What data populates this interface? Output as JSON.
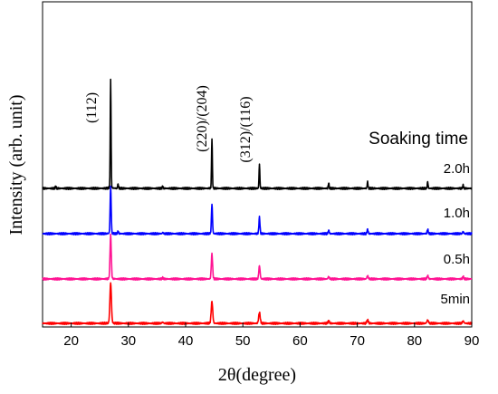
{
  "chart_data": {
    "type": "line",
    "xlabel": "2θ(degree)",
    "ylabel": "Intensity (arb. unit)",
    "xlim": [
      15,
      90
    ],
    "x_ticks": [
      "20",
      "30",
      "40",
      "50",
      "60",
      "70",
      "80",
      "90"
    ],
    "y_ticks_labeled": false,
    "grid": false,
    "legend_title": "Soaking time",
    "peak_annotations": [
      {
        "label": "(112)",
        "x": 26.9
      },
      {
        "label": "(220)/(204)",
        "x": 44.6
      },
      {
        "label": "(312)/(116)",
        "x": 52.9
      }
    ],
    "series": [
      {
        "name": "2.0h",
        "color": "#000000",
        "peaks": [
          {
            "x": 17.3,
            "h": 0.02
          },
          {
            "x": 26.9,
            "h": 1.0
          },
          {
            "x": 28.2,
            "h": 0.04
          },
          {
            "x": 36.0,
            "h": 0.02
          },
          {
            "x": 44.6,
            "h": 0.46
          },
          {
            "x": 52.9,
            "h": 0.22
          },
          {
            "x": 65.0,
            "h": 0.05
          },
          {
            "x": 71.8,
            "h": 0.06
          },
          {
            "x": 82.3,
            "h": 0.06
          },
          {
            "x": 88.5,
            "h": 0.03
          }
        ]
      },
      {
        "name": "1.0h",
        "color": "#0000ff",
        "peaks": [
          {
            "x": 26.9,
            "h": 0.43
          },
          {
            "x": 28.2,
            "h": 0.02
          },
          {
            "x": 36.0,
            "h": 0.01
          },
          {
            "x": 44.6,
            "h": 0.27
          },
          {
            "x": 52.9,
            "h": 0.15
          },
          {
            "x": 65.0,
            "h": 0.03
          },
          {
            "x": 71.8,
            "h": 0.04
          },
          {
            "x": 82.3,
            "h": 0.04
          },
          {
            "x": 88.5,
            "h": 0.02
          }
        ]
      },
      {
        "name": "0.5h",
        "color": "#ff1493",
        "peaks": [
          {
            "x": 26.9,
            "h": 0.4
          },
          {
            "x": 36.0,
            "h": 0.01
          },
          {
            "x": 44.6,
            "h": 0.23
          },
          {
            "x": 52.9,
            "h": 0.12
          },
          {
            "x": 65.0,
            "h": 0.02
          },
          {
            "x": 71.8,
            "h": 0.03
          },
          {
            "x": 82.3,
            "h": 0.03
          },
          {
            "x": 88.5,
            "h": 0.02
          }
        ]
      },
      {
        "name": "5min",
        "color": "#ff0000",
        "peaks": [
          {
            "x": 26.9,
            "h": 0.37
          },
          {
            "x": 36.0,
            "h": 0.01
          },
          {
            "x": 44.6,
            "h": 0.2
          },
          {
            "x": 52.9,
            "h": 0.1
          },
          {
            "x": 65.0,
            "h": 0.02
          },
          {
            "x": 71.8,
            "h": 0.03
          },
          {
            "x": 82.3,
            "h": 0.03
          },
          {
            "x": 88.5,
            "h": 0.02
          }
        ]
      }
    ]
  }
}
